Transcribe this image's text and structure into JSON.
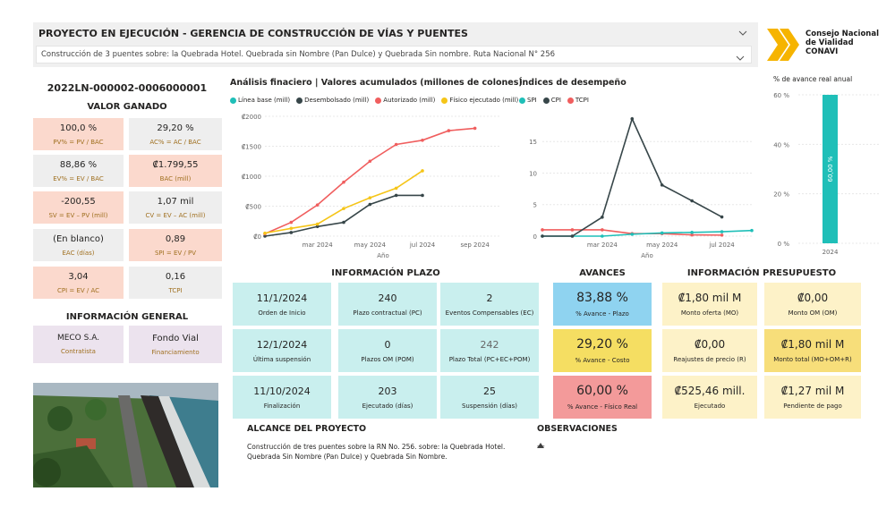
{
  "header": {
    "title": "PROYECTO EN EJECUCIÓN - GERENCIA DE CONSTRUCCIÓN DE VÍAS Y PUENTES",
    "subtitle": "Construcción de 3 puentes sobre: la Quebrada Hotel. Quebrada sin Nombre (Pan Dulce) y Quebrada Sin nombre. Ruta Nacional N° 256",
    "logo_text": [
      "Consejo Nacional",
      "de Vialidad",
      "CONAVI"
    ]
  },
  "project_code": "2022LN-000002-0006000001",
  "valor_ganado": {
    "title": "VALOR GANADO",
    "cards": [
      {
        "value": "100,0 %",
        "label": "PV% = PV / BAC"
      },
      {
        "value": "29,20 %",
        "label": "AC% = AC / BAC"
      },
      {
        "value": "88,86 %",
        "label": "EV% = EV / BAC"
      },
      {
        "value": "₡1.799,55",
        "label": "BAC (mill)"
      },
      {
        "value": "-200,55",
        "label": "SV = EV – PV (mill)"
      },
      {
        "value": "1,07 mil",
        "label": "CV = EV – AC (mill)"
      },
      {
        "value": "(En blanco)",
        "label": "EAC (días)"
      },
      {
        "value": "0,89",
        "label": "SPI = EV / PV"
      },
      {
        "value": "3,04",
        "label": "CPI = EV / AC"
      },
      {
        "value": "0,16",
        "label": "TCPI"
      }
    ]
  },
  "info_general": {
    "title": "INFORMACIÓN GENERAL",
    "contratista_value": "MECO S.A.",
    "contratista_label": "Contratista",
    "financ_value": "Fondo Vial",
    "financ_label": "Financiamiento"
  },
  "financial_chart": {
    "title": "Análisis finaciero | Valores acumulados (millones de colones)",
    "xlabel": "Año",
    "legend": [
      "Línea base (mill)",
      "Desembolsado (mill)",
      "Autorizado (mill)",
      "Físico ejecutado (mill)"
    ],
    "colors": [
      "#1fbfb8",
      "#374649",
      "#f05e5e",
      "#f5c518"
    ]
  },
  "index_chart": {
    "title": "Índices de desempeño",
    "xlabel": "Año",
    "legend": [
      "SPI",
      "CPI",
      "TCPI"
    ],
    "colors": [
      "#1fbfb8",
      "#374649",
      "#f05e5e"
    ]
  },
  "annual_chart": {
    "title": "% de avance real anual",
    "bar_label": "60,00 %",
    "color": "#1fbfb8"
  },
  "chart_data": [
    {
      "type": "line",
      "title": "Análisis finaciero | Valores acumulados (millones de colones)",
      "xlabel": "Año",
      "ylabel": "",
      "x": [
        "2024-01",
        "2024-02",
        "2024-03",
        "2024-04",
        "2024-05",
        "2024-06",
        "2024-07",
        "2024-08",
        "2024-09",
        "2024-10"
      ],
      "x_ticks": [
        "mar 2024",
        "may 2024",
        "jul 2024",
        "sep 2024"
      ],
      "y_ticks": [
        "₡0",
        "₡500",
        "₡1000",
        "₡1500",
        "₡2000"
      ],
      "ylim": [
        0,
        2000
      ],
      "series": [
        {
          "name": "Línea base (mill)",
          "values": [
            null,
            null,
            null,
            null,
            null,
            null,
            null,
            null,
            null,
            null
          ]
        },
        {
          "name": "Desembolsado (mill)",
          "values": [
            0,
            60,
            160,
            230,
            530,
            680,
            680,
            null,
            null,
            null
          ]
        },
        {
          "name": "Autorizado (mill)",
          "values": [
            40,
            230,
            520,
            900,
            1250,
            1530,
            1600,
            1760,
            1800,
            null
          ]
        },
        {
          "name": "Físico ejecutado (mill)",
          "values": [
            50,
            130,
            200,
            460,
            640,
            800,
            1090,
            null,
            null,
            null
          ]
        }
      ]
    },
    {
      "type": "line",
      "title": "Índices de desempeño",
      "xlabel": "Año",
      "ylabel": "",
      "x": [
        "2024-01",
        "2024-02",
        "2024-03",
        "2024-04",
        "2024-05",
        "2024-06",
        "2024-07",
        "2024-08"
      ],
      "x_ticks": [
        "mar 2024",
        "may 2024",
        "jul 2024"
      ],
      "y_ticks": [
        "0",
        "5",
        "10",
        "15"
      ],
      "ylim": [
        0,
        19
      ],
      "series": [
        {
          "name": "SPI",
          "values": [
            0,
            0,
            0,
            0.3,
            0.5,
            0.6,
            0.7,
            0.89
          ]
        },
        {
          "name": "CPI",
          "values": [
            0,
            0,
            3.0,
            18.6,
            8.1,
            5.6,
            3.04,
            null
          ]
        },
        {
          "name": "TCPI",
          "values": [
            1.0,
            1.0,
            1.0,
            0.4,
            0.4,
            0.2,
            0.16,
            null
          ]
        }
      ]
    },
    {
      "type": "bar",
      "title": "% de avance real anual",
      "categories": [
        "2024"
      ],
      "values": [
        60.0
      ],
      "y_ticks": [
        "0 %",
        "20 %",
        "40 %",
        "60 %"
      ],
      "ylim": [
        0,
        60
      ]
    }
  ],
  "plazo": {
    "title": "INFORMACIÓN PLAZO",
    "cards": [
      {
        "value": "11/1/2024",
        "label": "Orden de Inicio"
      },
      {
        "value": "240",
        "label": "Plazo contractual (PC)"
      },
      {
        "value": "2",
        "label": "Eventos Compensables (EC)"
      },
      {
        "value": "12/1/2024",
        "label": "Última suspensión"
      },
      {
        "value": "0",
        "label": "Plazos OM (POM)"
      },
      {
        "value": "242",
        "label": "Plazo Total (PC+EC+POM)"
      },
      {
        "value": "11/10/2024",
        "label": "Finalización"
      },
      {
        "value": "203",
        "label": "Ejecutado (días)"
      },
      {
        "value": "25",
        "label": "Suspensión (días)"
      }
    ]
  },
  "avances": {
    "title": "AVANCES",
    "cards": [
      {
        "value": "83,88 %",
        "label": "% Avance - Plazo",
        "color": "#8fd3f0"
      },
      {
        "value": "29,20 %",
        "label": "% Avance - Costo",
        "color": "#f5de62"
      },
      {
        "value": "60,00 %",
        "label": "% Avance - Físico Real",
        "color": "#f39a9a"
      }
    ]
  },
  "presupuesto": {
    "title": "INFORMACIÓN PRESUPUESTO",
    "cards": [
      {
        "value": "₡1,80 mil M",
        "label": "Monto oferta (MO)"
      },
      {
        "value": "₡0,00",
        "label": "Monto OM (OM)"
      },
      {
        "value": "₡0,00",
        "label": "Reajustes de precio (R)"
      },
      {
        "value": "₡1,80 mil M",
        "label": "Monto total (MO+OM+R)"
      },
      {
        "value": "₡525,46 mill.",
        "label": "Ejecutado"
      },
      {
        "value": "₡1,27 mil M",
        "label": "Pendiente de pago"
      }
    ]
  },
  "alcance": {
    "title": "ALCANCE DEL PROYECTO",
    "text": "Construcción de tres puentes sobre la RN No. 256. sobre: la Quebrada Hotel. Quebrada Sin Nombre (Pan Dulce) y Quebrada Sin Nombre."
  },
  "observaciones": {
    "title": "OBSERVACIONES",
    "text": "---"
  }
}
